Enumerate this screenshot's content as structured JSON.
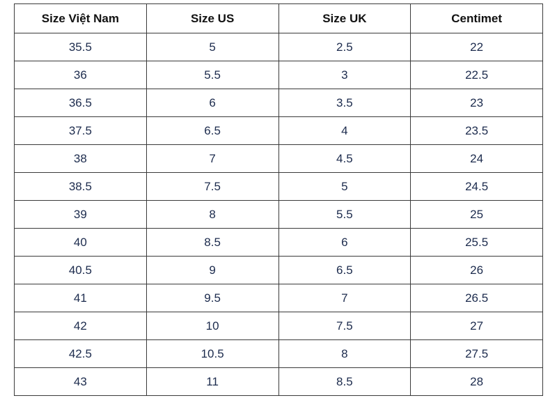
{
  "table": {
    "header": [
      "Size Việt Nam",
      "Size US",
      "Size UK",
      "Centimet"
    ],
    "rows": [
      [
        "35.5",
        "5",
        "2.5",
        "22"
      ],
      [
        "36",
        "5.5",
        "3",
        "22.5"
      ],
      [
        "36.5",
        "6",
        "3.5",
        "23"
      ],
      [
        "37.5",
        "6.5",
        "4",
        "23.5"
      ],
      [
        "38",
        "7",
        "4.5",
        "24"
      ],
      [
        "38.5",
        "7.5",
        "5",
        "24.5"
      ],
      [
        "39",
        "8",
        "5.5",
        "25"
      ],
      [
        "40",
        "8.5",
        "6",
        "25.5"
      ],
      [
        "40.5",
        "9",
        "6.5",
        "26"
      ],
      [
        "41",
        "9.5",
        "7",
        "26.5"
      ],
      [
        "42",
        "10",
        "7.5",
        "27"
      ],
      [
        "42.5",
        "10.5",
        "8",
        "27.5"
      ],
      [
        "43",
        "11",
        "8.5",
        "28"
      ]
    ]
  }
}
